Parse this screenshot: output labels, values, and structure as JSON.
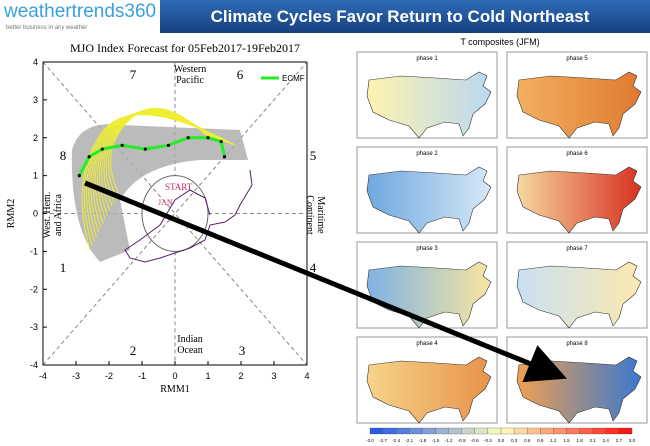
{
  "header": {
    "logo": "weathertrends360",
    "tagline": "better business in any weather",
    "title": "Climate Cycles Favor Return to Cold Northeast"
  },
  "chart_data": {
    "type": "line",
    "title": "MJO Index Forecast for 05Feb2017-19Feb2017",
    "x_label": "RMM1",
    "y_label": "RMM2",
    "xlim": [
      -4,
      4
    ],
    "ylim": [
      -4,
      4
    ],
    "xticks": [
      -4,
      -3,
      -2,
      -1,
      0,
      1,
      2,
      3,
      4
    ],
    "yticks": [
      -4,
      -3,
      -2,
      -1,
      0,
      1,
      2,
      3,
      4
    ],
    "legend": "upper right",
    "series": [
      {
        "name": "ECMF",
        "color": "#22ee22",
        "x": [
          -2.9,
          -2.6,
          -2.2,
          -1.6,
          -0.9,
          -0.2,
          0.4,
          1.0,
          1.4,
          1.5
        ],
        "values": [
          1.0,
          1.5,
          1.7,
          1.8,
          1.7,
          1.8,
          2.0,
          2.0,
          1.9,
          1.5
        ]
      }
    ],
    "phase_numbers": [
      "1",
      "2",
      "3",
      "4",
      "5",
      "6",
      "7",
      "8"
    ],
    "regions": [
      [
        "Western",
        "Pacific"
      ],
      [
        "Maritime",
        "Continent"
      ],
      [
        "Indian",
        "Ocean"
      ],
      [
        "West. Hem.",
        "and Africa"
      ]
    ],
    "annotations": [
      "START",
      "JAN"
    ]
  },
  "composites": {
    "title": "T composites (JFM)",
    "maps": [
      "phase 1",
      "phase 2",
      "phase 3",
      "phase 4",
      "phase 5",
      "phase 6",
      "phase 7",
      "phase 8"
    ],
    "colorbar": [
      "-3.0",
      "-2.7",
      "-2.4",
      "-2.1",
      "-1.8",
      "-1.5",
      "-1.2",
      "-0.9",
      "-0.6",
      "-0.3",
      "0.0",
      "0.3",
      "0.6",
      "0.9",
      "1.2",
      "1.5",
      "1.8",
      "2.1",
      "2.4",
      "2.7",
      "3.0"
    ]
  }
}
